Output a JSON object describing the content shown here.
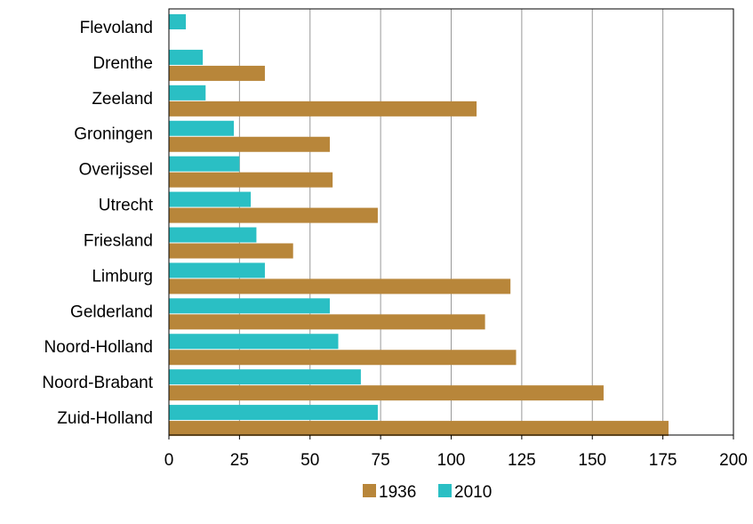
{
  "chart_data": {
    "type": "bar",
    "orientation": "horizontal",
    "categories": [
      "Flevoland",
      "Drenthe",
      "Zeeland",
      "Groningen",
      "Overijssel",
      "Utrecht",
      "Friesland",
      "Limburg",
      "Gelderland",
      "Noord-Holland",
      "Noord-Brabant",
      "Zuid-Holland"
    ],
    "series": [
      {
        "name": "1936",
        "color": "#B8863A",
        "values": [
          0,
          34,
          109,
          57,
          58,
          74,
          44,
          121,
          112,
          123,
          154,
          177
        ]
      },
      {
        "name": "2010",
        "color": "#2ABFC4",
        "values": [
          6,
          12,
          13,
          23,
          25,
          29,
          31,
          34,
          57,
          60,
          68,
          74
        ]
      }
    ],
    "xlim": [
      0,
      200
    ],
    "xticks": [
      "0",
      "25",
      "50",
      "75",
      "100",
      "125",
      "150",
      "175",
      "200"
    ],
    "grid": "vertical",
    "legend": "bottom"
  }
}
